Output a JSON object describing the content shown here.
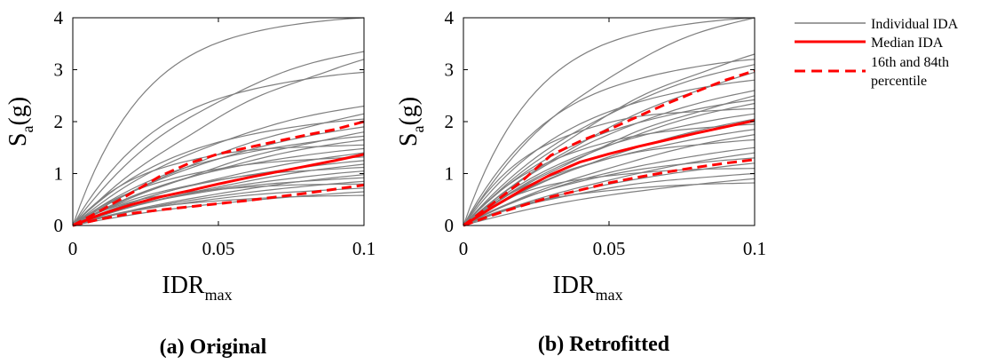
{
  "legend": {
    "individual": "Individual IDA",
    "median": "Median IDA",
    "pct_line1": "16th and 84th",
    "pct_line2": "percentile"
  },
  "colors": {
    "individual": "#7f7f7f",
    "median": "#ff0000",
    "percentile": "#ff0000"
  },
  "chart_data": [
    {
      "type": "line",
      "caption": "(a) Original",
      "xlabel_main": "IDR",
      "xlabel_sub": "max",
      "ylabel_main": "S",
      "ylabel_sub": "a",
      "ylabel_tail": "(g)",
      "xlim": [
        0,
        0.1
      ],
      "ylim": [
        0,
        4
      ],
      "xticks": [
        0,
        0.05,
        0.1
      ],
      "xtick_labels": [
        "0",
        "0.05",
        "0.1"
      ],
      "yticks": [
        0,
        1,
        2,
        3,
        4
      ],
      "ytick_labels": [
        "0",
        "1",
        "2",
        "3",
        "4"
      ],
      "individual_final_values": [
        4.0,
        3.35,
        3.2,
        2.95,
        2.3,
        2.15,
        2.05,
        1.9,
        1.8,
        1.72,
        1.65,
        1.55,
        1.48,
        1.4,
        1.32,
        1.25,
        1.18,
        1.12,
        1.05,
        0.98,
        0.92,
        0.85,
        0.8,
        0.72,
        0.65,
        0.58
      ],
      "series": [
        {
          "name": "Median IDA",
          "x": [
            0,
            0.01,
            0.02,
            0.03,
            0.04,
            0.05,
            0.06,
            0.07,
            0.08,
            0.09,
            0.1
          ],
          "y": [
            0,
            0.22,
            0.4,
            0.55,
            0.67,
            0.8,
            0.92,
            1.03,
            1.14,
            1.25,
            1.37
          ]
        },
        {
          "name": "84th percentile",
          "x": [
            0,
            0.01,
            0.02,
            0.03,
            0.04,
            0.05,
            0.06,
            0.07,
            0.08,
            0.09,
            0.1
          ],
          "y": [
            0,
            0.3,
            0.62,
            0.95,
            1.2,
            1.38,
            1.5,
            1.62,
            1.74,
            1.85,
            2.0
          ]
        },
        {
          "name": "16th percentile",
          "x": [
            0,
            0.01,
            0.02,
            0.03,
            0.04,
            0.05,
            0.06,
            0.07,
            0.08,
            0.09,
            0.1
          ],
          "y": [
            0,
            0.13,
            0.23,
            0.3,
            0.36,
            0.42,
            0.48,
            0.55,
            0.62,
            0.7,
            0.78
          ]
        }
      ]
    },
    {
      "type": "line",
      "caption": "(b) Retrofitted",
      "xlabel_main": "IDR",
      "xlabel_sub": "max",
      "ylabel_main": "S",
      "ylabel_sub": "a",
      "ylabel_tail": "(g)",
      "xlim": [
        0,
        0.1
      ],
      "ylim": [
        0,
        4
      ],
      "xticks": [
        0,
        0.05,
        0.1
      ],
      "xtick_labels": [
        "0",
        "0.05",
        "0.1"
      ],
      "yticks": [
        0,
        1,
        2,
        3,
        4
      ],
      "ytick_labels": [
        "0",
        "1",
        "2",
        "3",
        "4"
      ],
      "individual_final_values": [
        4.0,
        4.0,
        3.3,
        3.2,
        3.1,
        2.95,
        2.8,
        2.6,
        2.5,
        2.42,
        2.35,
        2.25,
        2.15,
        2.05,
        1.95,
        1.85,
        1.75,
        1.65,
        1.5,
        1.4,
        1.3,
        1.2,
        1.1,
        1.0,
        0.9,
        0.82
      ],
      "series": [
        {
          "name": "Median IDA",
          "x": [
            0,
            0.01,
            0.02,
            0.03,
            0.04,
            0.05,
            0.06,
            0.07,
            0.08,
            0.09,
            0.1
          ],
          "y": [
            0,
            0.35,
            0.68,
            0.98,
            1.22,
            1.38,
            1.52,
            1.65,
            1.78,
            1.9,
            2.02
          ]
        },
        {
          "name": "84th percentile",
          "x": [
            0,
            0.01,
            0.02,
            0.03,
            0.04,
            0.05,
            0.06,
            0.07,
            0.08,
            0.09,
            0.1
          ],
          "y": [
            0,
            0.42,
            0.85,
            1.35,
            1.62,
            1.85,
            2.1,
            2.35,
            2.58,
            2.8,
            2.98
          ]
        },
        {
          "name": "16th percentile",
          "x": [
            0,
            0.01,
            0.02,
            0.03,
            0.04,
            0.05,
            0.06,
            0.07,
            0.08,
            0.09,
            0.1
          ],
          "y": [
            0,
            0.2,
            0.38,
            0.55,
            0.68,
            0.82,
            0.93,
            1.03,
            1.12,
            1.2,
            1.27
          ]
        }
      ]
    }
  ]
}
